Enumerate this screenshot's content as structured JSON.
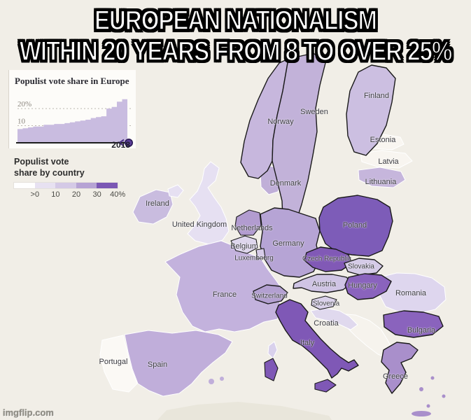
{
  "meme": {
    "title_line1": "EUROPEAN NATIONALISM",
    "title_line2": "WITHIN 20 YEARS FROM 8 TO OVER 25%",
    "watermark": "imgflip.com"
  },
  "chart_data": {
    "type": "area",
    "title": "Populist vote share in Europe",
    "x": [
      1998,
      1999,
      2000,
      2001,
      2002,
      2003,
      2004,
      2005,
      2006,
      2007,
      2008,
      2009,
      2010,
      2011,
      2012,
      2013,
      2014,
      2015,
      2016,
      2017,
      2018
    ],
    "values": [
      8,
      8.5,
      9,
      9.5,
      9.5,
      10.5,
      10.5,
      11,
      11,
      11.5,
      12,
      12.5,
      13,
      13.5,
      14.5,
      15,
      15.5,
      20,
      21,
      24,
      25.5
    ],
    "ylim": [
      0,
      27
    ],
    "yticks": [
      {
        "value": 20,
        "label": "20%"
      },
      {
        "value": 10,
        "label": "10"
      }
    ],
    "end_label": "2018",
    "grid": "dotted",
    "area_color": "#c9bce0",
    "marker_color": "#5b3d98",
    "axis_color": "#1d1d1d"
  },
  "legend": {
    "title_line1": "Populist vote",
    "title_line2": "share by country",
    "scale": [
      {
        "label": ">0",
        "color": "#ffffff"
      },
      {
        "label": "10",
        "color": "#e7e1f1"
      },
      {
        "label": "20",
        "color": "#d4c9e6"
      },
      {
        "label": "30",
        "color": "#b6a3d4"
      },
      {
        "label": "40%",
        "color": "#7b57b4"
      }
    ]
  },
  "map": {
    "sea_color": "#f1eee7",
    "other_land_color": "#e9e6db",
    "balkans_color": "#f6f3ed",
    "countries": {
      "norway": {
        "label": "Norway",
        "color": "#c7b7dd"
      },
      "sweden": {
        "label": "Sweden",
        "color": "#c2b2d9"
      },
      "finland": {
        "label": "Finland",
        "color": "#ccbfe1"
      },
      "estonia": {
        "label": "Estonia",
        "color": "#f9f6f1"
      },
      "latvia": {
        "label": "Latvia",
        "color": "#f8f5f0"
      },
      "lithuania": {
        "label": "Lithuania",
        "color": "#c6b6dc"
      },
      "denmark": {
        "label": "Denmark",
        "color": "#c0afd8"
      },
      "ireland": {
        "label": "Ireland",
        "color": "#c9bcdf"
      },
      "united_kingdom": {
        "label": "United Kingdom",
        "color": "#e6e0f2"
      },
      "netherlands": {
        "label": "Netherlands",
        "color": "#b29cd0"
      },
      "belgium": {
        "label": "Belgium",
        "color": "#ded6ed"
      },
      "luxembourg": {
        "label": "Luxembourg",
        "color": "#d6cbe8"
      },
      "germany": {
        "label": "Germany",
        "color": "#b6a4d5"
      },
      "poland": {
        "label": "Poland",
        "color": "#7d5cb8"
      },
      "czech_republic": {
        "label": "Czech Republic",
        "color": "#8159b6"
      },
      "slovakia": {
        "label": "Slovakia",
        "color": "#d5cbe7"
      },
      "austria": {
        "label": "Austria",
        "color": "#cfc4e4"
      },
      "hungary": {
        "label": "Hungary",
        "color": "#8a63bd"
      },
      "switzerland": {
        "label": "Switzerland",
        "color": "#b3a0d1"
      },
      "slovenia": {
        "label": "Slovenia",
        "color": "#d9d0ea"
      },
      "croatia": {
        "label": "Croatia",
        "color": "#e0d9ee"
      },
      "romania": {
        "label": "Romania",
        "color": "#ded6ee"
      },
      "bulgaria": {
        "label": "Bulgaria",
        "color": "#8a63bd"
      },
      "greece": {
        "label": "Greece",
        "color": "#a98fcb"
      },
      "italy": {
        "label": "Italy",
        "color": "#7f58b6"
      },
      "france": {
        "label": "France",
        "color": "#c3b2dd"
      },
      "spain": {
        "label": "Spain",
        "color": "#c0aeda"
      },
      "portugal": {
        "label": "Portugal",
        "color": "#fbf9f5"
      },
      "corsica": {
        "label": "",
        "color": "#d9d1ec"
      }
    }
  }
}
